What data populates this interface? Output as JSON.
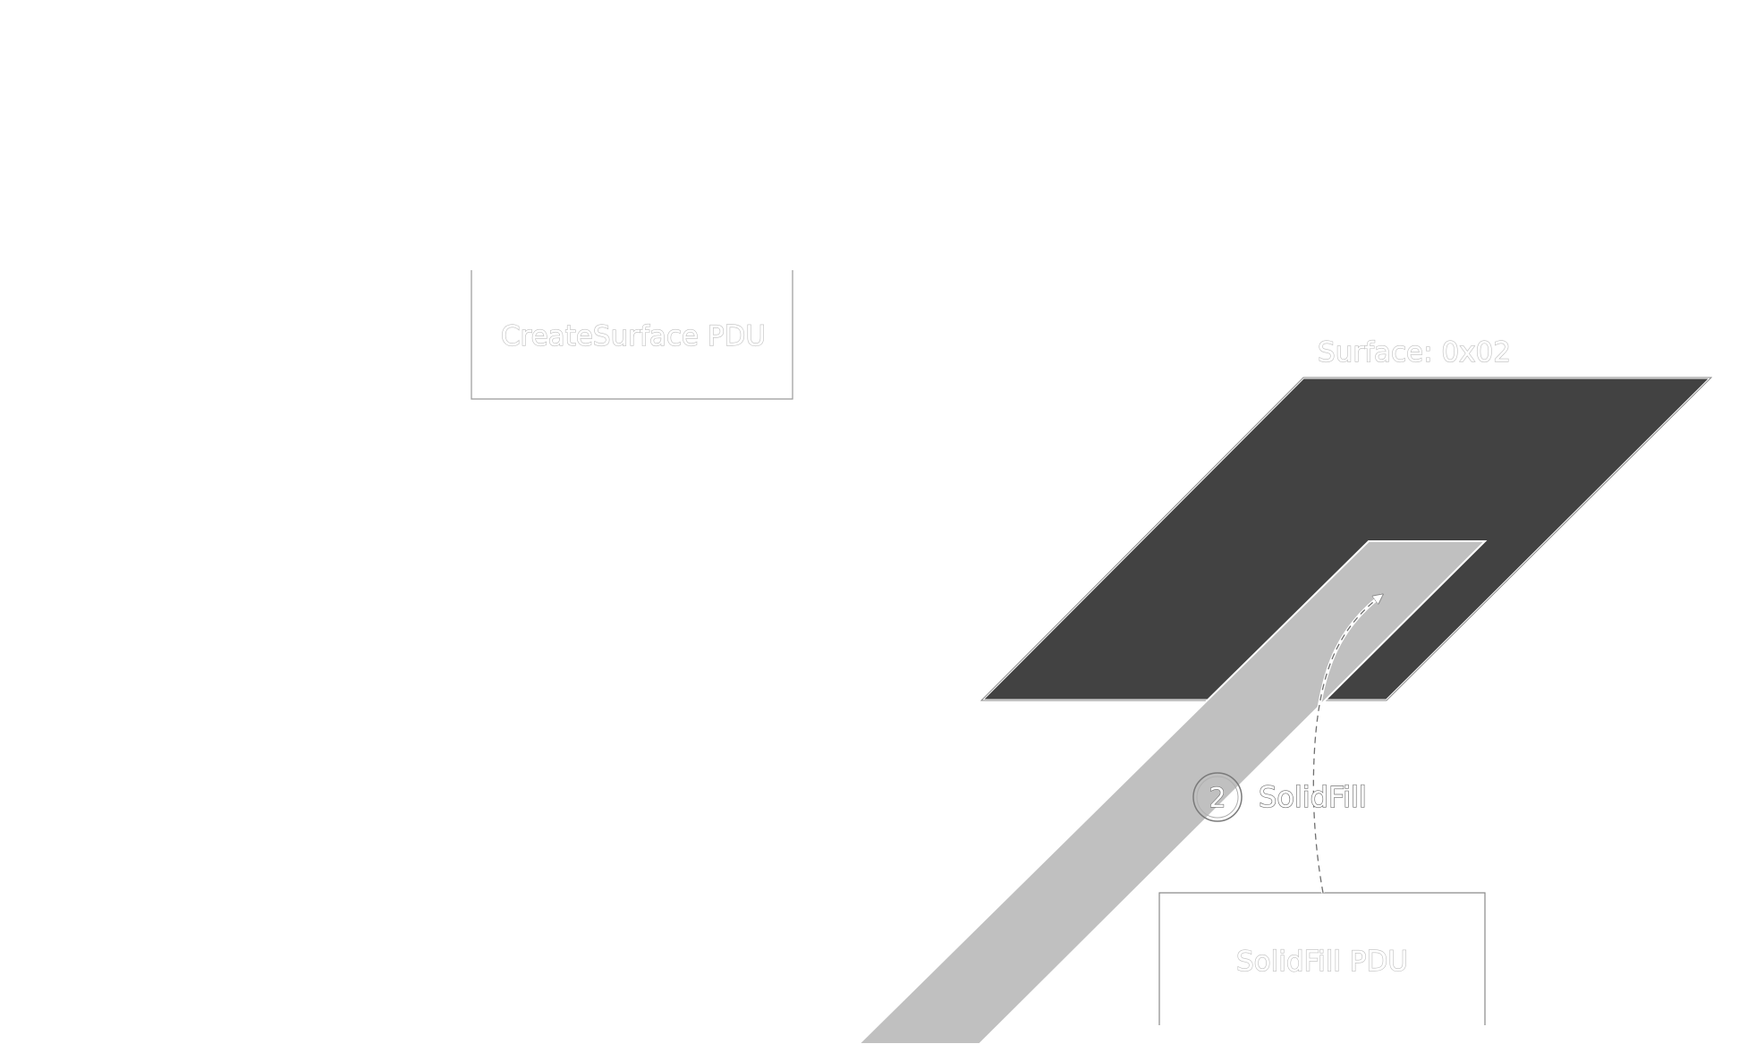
{
  "boxes": {
    "create_surface": "CreateSurface PDU",
    "solidfill": "SolidFill PDU"
  },
  "surface": {
    "label": "Surface: 0x02"
  },
  "step": {
    "number": "2",
    "label": "SolidFill"
  },
  "colors": {
    "background": "#ffffff",
    "surface_fill": "#424242",
    "fill_region": "#c0c0c0",
    "outline": "#8a8a8a"
  }
}
